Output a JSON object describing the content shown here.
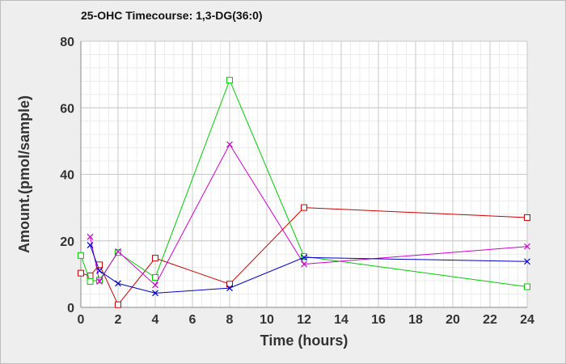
{
  "chart_data": {
    "type": "line",
    "title": "25-OHC Timecourse: 1,3-DG(36:0)",
    "xlabel": "Time (hours)",
    "ylabel": "Amount.(pmol/sample)",
    "xlim": [
      0,
      24
    ],
    "ylim": [
      0,
      80
    ],
    "xticks": [
      0,
      2,
      4,
      6,
      8,
      10,
      12,
      14,
      16,
      18,
      20,
      22,
      24
    ],
    "yticks": [
      0,
      20,
      40,
      60,
      80
    ],
    "grid": true,
    "legend": "none",
    "series": [
      {
        "color": "#cc0000",
        "marker": "square",
        "points": [
          [
            0,
            10.3
          ],
          [
            0.5,
            9.5
          ],
          [
            1,
            12.8
          ],
          [
            2,
            0.8
          ],
          [
            4,
            14.8
          ],
          [
            8,
            7.0
          ],
          [
            12,
            30.0
          ],
          [
            24,
            27.0
          ]
        ]
      },
      {
        "color": "#00cc00",
        "marker": "square",
        "points": [
          [
            0,
            15.6
          ],
          [
            0.5,
            7.8
          ],
          [
            1,
            8.2
          ],
          [
            2,
            16.5
          ],
          [
            4,
            9.0
          ],
          [
            8,
            68.3
          ],
          [
            12,
            15.3
          ],
          [
            24,
            6.2
          ]
        ]
      },
      {
        "color": "#cc00cc",
        "marker": "x",
        "points": [
          [
            0.5,
            21.2
          ],
          [
            1,
            7.8
          ],
          [
            2,
            16.8
          ],
          [
            4,
            6.7
          ],
          [
            8,
            49.0
          ],
          [
            12,
            13.0
          ],
          [
            24,
            18.3
          ]
        ]
      },
      {
        "color": "#0000cc",
        "marker": "x",
        "points": [
          [
            0.5,
            18.7
          ],
          [
            1,
            11.0
          ],
          [
            2,
            7.2
          ],
          [
            4,
            4.3
          ],
          [
            8,
            5.8
          ],
          [
            12,
            15.0
          ],
          [
            24,
            13.8
          ]
        ]
      }
    ]
  }
}
